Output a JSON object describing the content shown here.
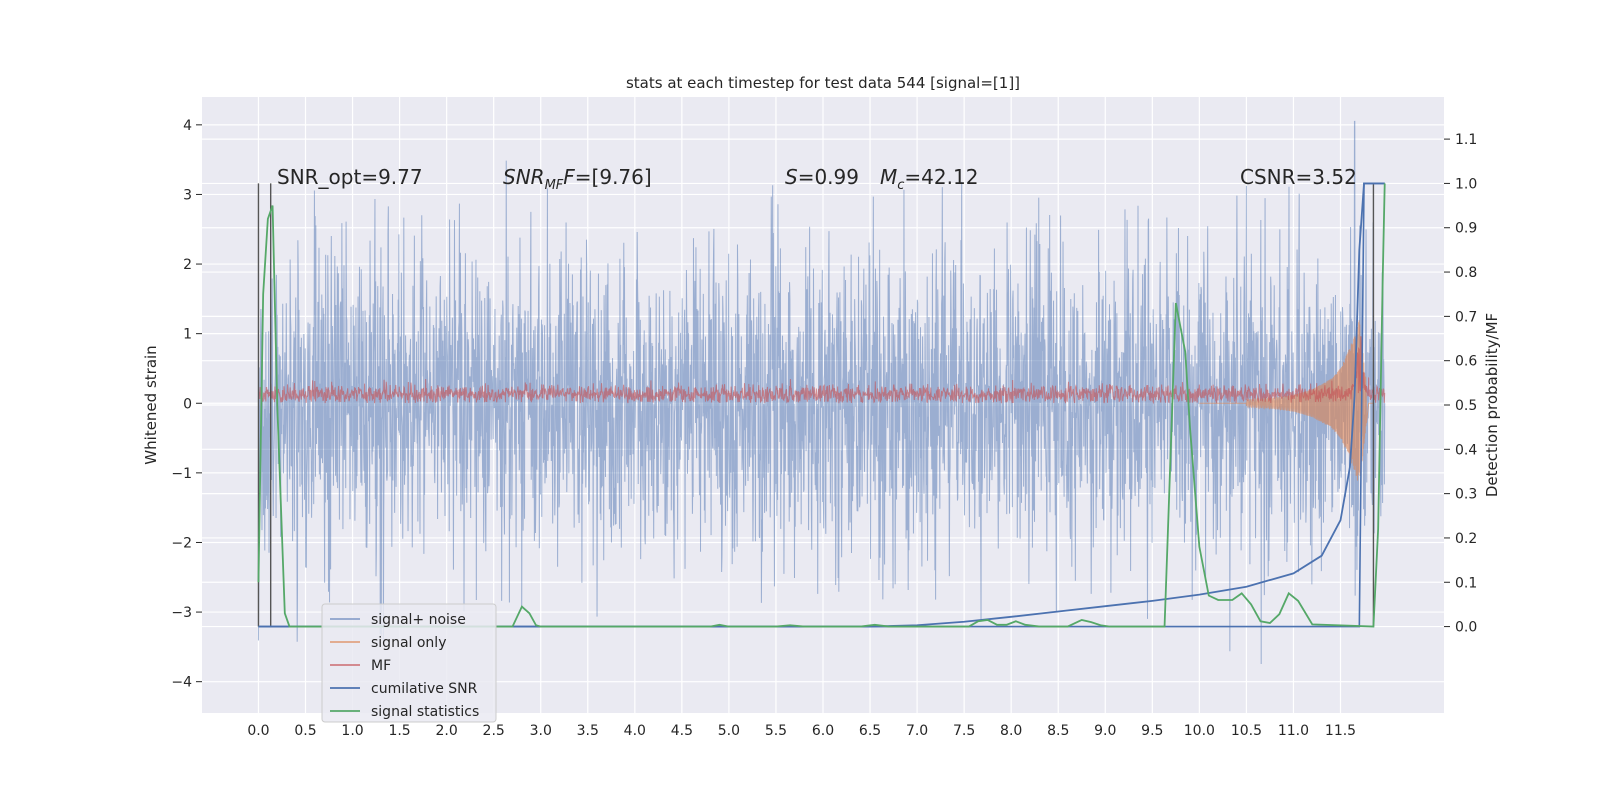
{
  "chart_data": {
    "type": "line",
    "title": "stats at each timestep for test data 544 [signal=[1]]",
    "xlabel": "",
    "ylabel": "Whitened strain",
    "y2label": "Detection probability/MF",
    "xlim": [
      -0.6,
      12.6
    ],
    "ylim": [
      -4.45,
      4.4
    ],
    "y2lim": [
      -0.195,
      1.195
    ],
    "xticks": [
      0.0,
      0.5,
      1.0,
      1.5,
      2.0,
      2.5,
      3.0,
      3.5,
      4.0,
      4.5,
      5.0,
      5.5,
      6.0,
      6.5,
      7.0,
      7.5,
      8.0,
      8.5,
      9.0,
      9.5,
      10.0,
      10.5,
      11.0,
      11.5
    ],
    "xtick_labels": [
      "0.0",
      "0.5",
      "1.0",
      "1.5",
      "2.0",
      "2.5",
      "3.0",
      "3.5",
      "4.0",
      "4.5",
      "5.0",
      "5.5",
      "6.0",
      "6.5",
      "7.0",
      "7.5",
      "8.0",
      "8.5",
      "9.0",
      "9.5",
      "10.0",
      "10.5",
      "11.0",
      "11.5"
    ],
    "yticks": [
      -4,
      -3,
      -2,
      -1,
      0,
      1,
      2,
      3,
      4
    ],
    "ytick_labels": [
      "−4",
      "−3",
      "−2",
      "−1",
      "0",
      "1",
      "2",
      "3",
      "4"
    ],
    "y2ticks": [
      0.0,
      0.1,
      0.2,
      0.3,
      0.4,
      0.5,
      0.6,
      0.7,
      0.8,
      0.9,
      1.0,
      1.1
    ],
    "y2tick_labels": [
      "0.0",
      "0.1",
      "0.2",
      "0.3",
      "0.4",
      "0.5",
      "0.6",
      "0.7",
      "0.8",
      "0.9",
      "1.0",
      "1.1"
    ],
    "grid": true,
    "legend_placement": "lower-left",
    "annotations": {
      "snr_opt": "SNR_opt=9.77",
      "snr_mf_main": "SNR",
      "snr_mf_sub": "MF",
      "snr_mf_value": "=[9.76]",
      "s_var": "S",
      "s_value": "=0.99",
      "mc_var": "M",
      "mc_sub": "c",
      "mc_value": "=42.12",
      "csnr": "CSNR=3.52"
    },
    "series": [
      {
        "name": "signal+ noise",
        "color": "#4c72b0",
        "axis": "left",
        "style": "noise, amplitude ~1.1 std, spikes to about ±3.5, max 4.05 near x=11.65",
        "x_range": [
          0.0,
          11.97
        ]
      },
      {
        "name": "signal only",
        "color": "#dd8452",
        "axis": "left",
        "style": "chirp with amplitude growing toward merger near x=11.75",
        "x": [
          10.5,
          10.8,
          11.0,
          11.2,
          11.4,
          11.5,
          11.6,
          11.65,
          11.7,
          11.75,
          11.8
        ],
        "amplitude": [
          0.05,
          0.08,
          0.12,
          0.2,
          0.35,
          0.5,
          0.8,
          1.0,
          1.2,
          0.6,
          0.0
        ]
      },
      {
        "name": "MF",
        "color": "#c44e52",
        "axis": "left",
        "style": "band between 0.0 and about 0.3, peak about 1.0 near x=11.7",
        "x_range": [
          0.0,
          11.97
        ]
      },
      {
        "name": "cumilative SNR",
        "color": "#4c72b0",
        "axis": "right",
        "x": [
          0.0,
          6.5,
          7.0,
          7.5,
          8.0,
          8.5,
          9.0,
          9.5,
          10.0,
          10.5,
          11.0,
          11.3,
          11.5,
          11.6,
          11.65,
          11.7,
          11.75,
          11.97
        ],
        "values": [
          0.0,
          0.0,
          0.003,
          0.011,
          0.022,
          0.034,
          0.046,
          0.058,
          0.072,
          0.09,
          0.12,
          0.16,
          0.24,
          0.36,
          0.52,
          0.85,
          1.0,
          1.0
        ]
      },
      {
        "name": "signal statistics",
        "color": "#55a868",
        "axis": "right",
        "x": [
          0.0,
          0.05,
          0.1,
          0.15,
          0.2,
          0.28,
          0.33,
          2.7,
          2.8,
          2.88,
          2.95,
          3.0,
          4.8,
          4.9,
          5.0,
          5.5,
          5.65,
          5.8,
          6.4,
          6.55,
          6.7,
          7.55,
          7.65,
          7.75,
          7.85,
          7.95,
          8.05,
          8.15,
          8.3,
          8.4,
          8.6,
          8.75,
          8.85,
          8.95,
          9.05,
          9.2,
          9.63,
          9.66,
          9.75,
          9.85,
          9.9,
          10.0,
          10.1,
          10.2,
          10.35,
          10.45,
          10.55,
          10.65,
          10.75,
          10.85,
          10.95,
          11.05,
          11.2,
          11.85,
          11.9,
          11.95,
          11.97
        ],
        "values": [
          0.1,
          0.75,
          0.92,
          0.95,
          0.5,
          0.03,
          0.0,
          0.0,
          0.045,
          0.03,
          0.003,
          0.0,
          0.0,
          0.004,
          0.0,
          0.0,
          0.003,
          0.0,
          0.0,
          0.004,
          0.0,
          0.0,
          0.012,
          0.015,
          0.004,
          0.004,
          0.012,
          0.004,
          0.0,
          0.0,
          0.0,
          0.015,
          0.01,
          0.003,
          0.0,
          0.0,
          0.0,
          0.18,
          0.73,
          0.62,
          0.45,
          0.18,
          0.07,
          0.06,
          0.06,
          0.075,
          0.05,
          0.012,
          0.008,
          0.028,
          0.075,
          0.058,
          0.005,
          0.0,
          0.22,
          0.8,
          1.0
        ]
      }
    ],
    "vertical_markers_x": [
      0.0,
      0.13,
      11.85
    ],
    "step_lines": [
      {
        "color": "#4c72b0",
        "x": [
          0.0,
          0.13,
          0.13,
          11.7,
          11.75,
          11.97
        ],
        "values": [
          0.0,
          0.0,
          0.0,
          0.0,
          1.0,
          1.0
        ]
      }
    ]
  }
}
